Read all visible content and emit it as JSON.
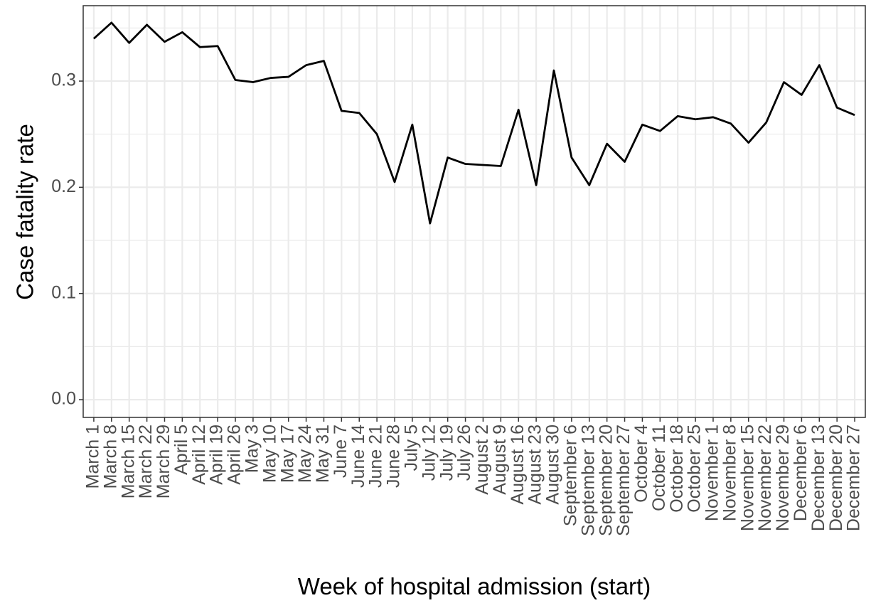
{
  "chart_data": {
    "type": "line",
    "x_label": "Week of hospital admission (start)",
    "y_label": "Case fatality rate",
    "categories": [
      "March 1",
      "March 8",
      "March 15",
      "March 22",
      "March 29",
      "April 5",
      "April 12",
      "April 19",
      "April 26",
      "May 3",
      "May 10",
      "May 17",
      "May 24",
      "May 31",
      "June 7",
      "June 14",
      "June 21",
      "June 28",
      "July 5",
      "July 12",
      "July 19",
      "July 26",
      "August 2",
      "August 9",
      "August 16",
      "August 23",
      "August 30",
      "September 6",
      "September 13",
      "September 20",
      "September 27",
      "October 4",
      "October 11",
      "October 18",
      "October 25",
      "November 1",
      "November 8",
      "November 15",
      "November 22",
      "November 29",
      "December 6",
      "December 13",
      "December 20",
      "December 27"
    ],
    "values": [
      0.34,
      0.355,
      0.336,
      0.353,
      0.337,
      0.346,
      0.332,
      0.333,
      0.301,
      0.299,
      0.303,
      0.304,
      0.315,
      0.319,
      0.272,
      0.27,
      0.25,
      0.205,
      0.259,
      0.166,
      0.228,
      0.222,
      0.221,
      0.22,
      0.273,
      0.202,
      0.31,
      0.228,
      0.202,
      0.241,
      0.224,
      0.259,
      0.253,
      0.267,
      0.264,
      0.266,
      0.26,
      0.242,
      0.261,
      0.299,
      0.287,
      0.315,
      0.275,
      0.268
    ],
    "color": "#000000",
    "ylim": [
      -0.0167,
      0.371
    ],
    "yticks": [
      {
        "value": 0,
        "label": "0.0"
      },
      0.1,
      0.2,
      0.3
    ],
    "grid": true
  }
}
